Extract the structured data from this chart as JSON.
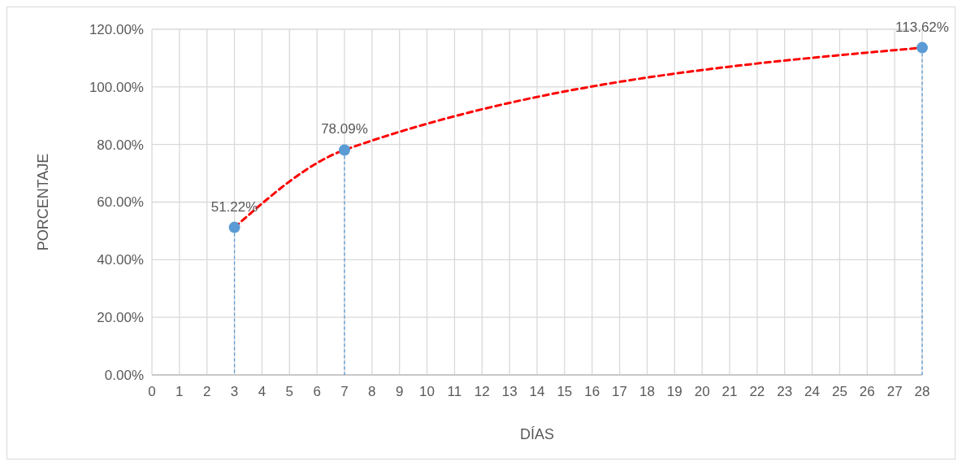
{
  "chart_data": {
    "type": "scatter",
    "xlabel": "DÍAS",
    "ylabel": "PORCENTAJE",
    "series": [
      {
        "type": "line",
        "color": "#ff0000",
        "line_style": "dashed",
        "x": [
          3,
          7,
          28
        ],
        "values": [
          51.2,
          78.1,
          113.6
        ]
      },
      {
        "color": "#5b9bd5",
        "marker": "circle",
        "x": [
          3,
          7,
          28
        ],
        "values": [
          51.22,
          78.09,
          113.62
        ],
        "value_labels": [
          "51.22%",
          "78.09%",
          "113.62%"
        ]
      }
    ],
    "xlim": [
      0,
      28
    ],
    "xticks": [
      0,
      1,
      2,
      3,
      4,
      5,
      6,
      7,
      8,
      9,
      10,
      11,
      12,
      13,
      14,
      15,
      16,
      17,
      18,
      19,
      20,
      21,
      22,
      23,
      24,
      25,
      26,
      27,
      28
    ],
    "ylim": [
      0,
      120
    ],
    "yticks": [
      {
        "value": 0,
        "label": "0.00%"
      },
      {
        "value": 20,
        "label": "20.00%"
      },
      {
        "value": 40,
        "label": "40.00%"
      },
      {
        "value": 60,
        "label": "60.00%"
      },
      {
        "value": 80,
        "label": "80.00%"
      },
      {
        "value": 100,
        "label": "100.00%"
      },
      {
        "value": 120,
        "label": "120.00%"
      }
    ],
    "grid": true
  }
}
